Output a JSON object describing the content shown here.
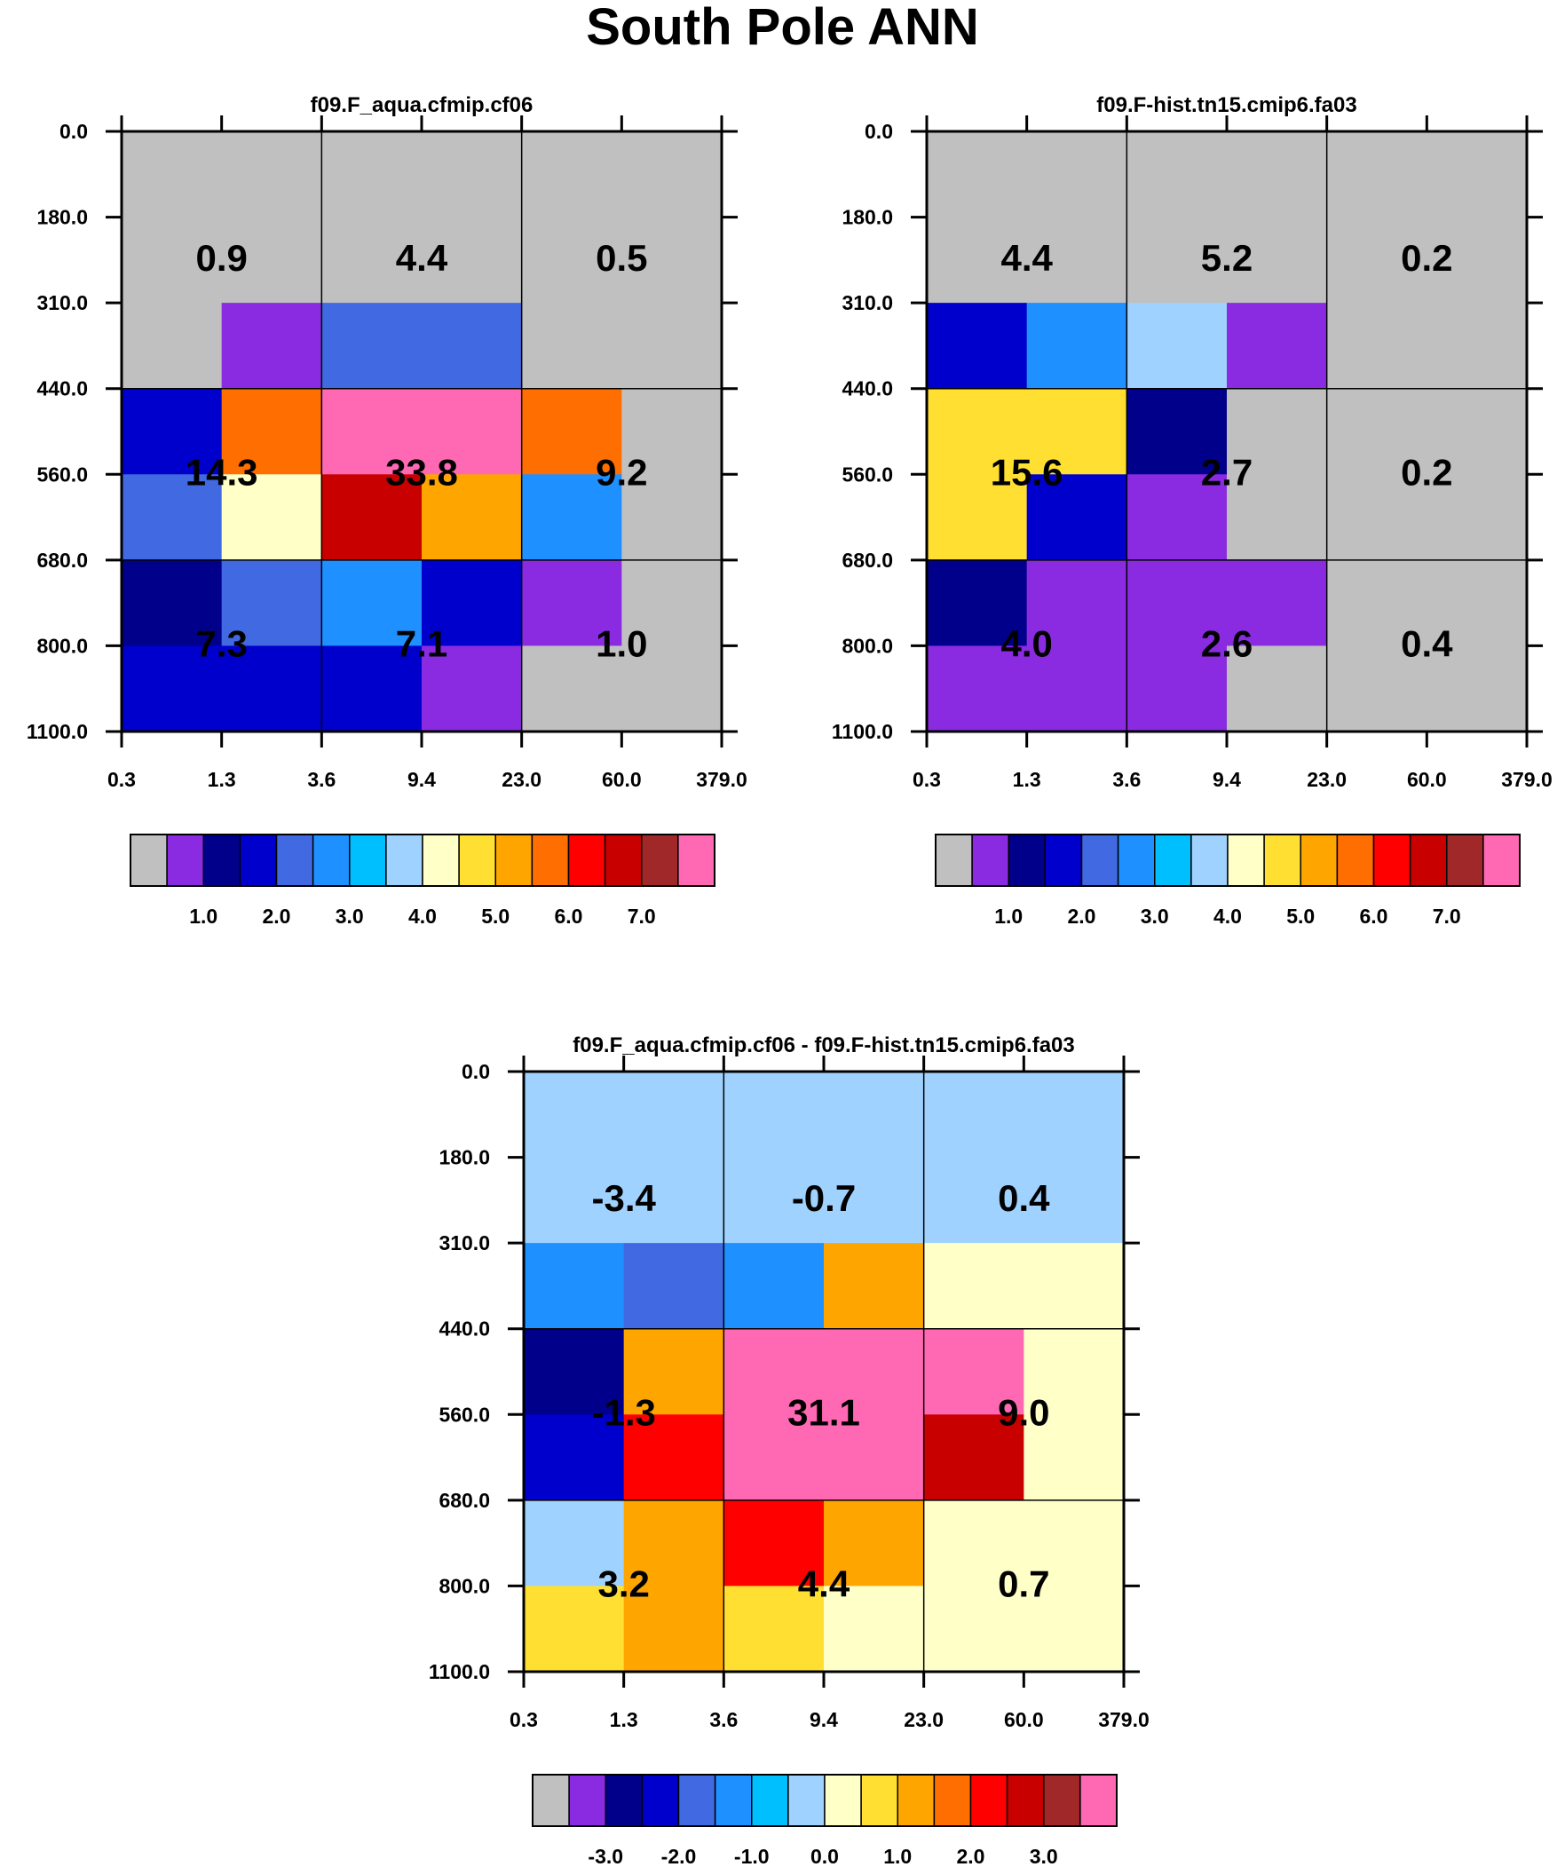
{
  "title": "South Pole ANN",
  "palette": [
    "#c0c0c0",
    "#8a2be2",
    "#00008b",
    "#0000cd",
    "#4169e1",
    "#1e90ff",
    "#00bfff",
    "#a0d2ff",
    "#ffffc8",
    "#ffe032",
    "#ffa500",
    "#ff6e00",
    "#ff0000",
    "#c80000",
    "#a02828",
    "#ff69b4"
  ],
  "chart_data": [
    {
      "type": "heatmap",
      "title": "f09.F_aqua.cfmip.cf06",
      "xticks": [
        "0.3",
        "1.3",
        "3.6",
        "9.4",
        "23.0",
        "60.0",
        "379.0"
      ],
      "yticks": [
        "0.0",
        "180.0",
        "310.0",
        "440.0",
        "560.0",
        "680.0",
        "800.0",
        "1100.0"
      ],
      "cells": [
        [
          0,
          0,
          0,
          0,
          0,
          0
        ],
        [
          0,
          1,
          4,
          4,
          0,
          0
        ],
        [
          3,
          11,
          15,
          15,
          11,
          0
        ],
        [
          4,
          8,
          13,
          10,
          5,
          0
        ],
        [
          2,
          4,
          5,
          3,
          1,
          0
        ],
        [
          3,
          3,
          3,
          1,
          0,
          0
        ]
      ],
      "values": [
        [
          "0.9",
          "4.4",
          "0.5"
        ],
        [
          "14.3",
          "33.8",
          "9.2"
        ],
        [
          "7.3",
          "7.1",
          "1.0"
        ]
      ],
      "colorbar": {
        "labels": [
          "1.0",
          "2.0",
          "3.0",
          "4.0",
          "5.0",
          "6.0",
          "7.0"
        ]
      }
    },
    {
      "type": "heatmap",
      "title": "f09.F-hist.tn15.cmip6.fa03",
      "xticks": [
        "0.3",
        "1.3",
        "3.6",
        "9.4",
        "23.0",
        "60.0",
        "379.0"
      ],
      "yticks": [
        "0.0",
        "180.0",
        "310.0",
        "440.0",
        "560.0",
        "680.0",
        "800.0",
        "1100.0"
      ],
      "cells": [
        [
          0,
          0,
          0,
          0,
          0,
          0
        ],
        [
          3,
          5,
          7,
          1,
          0,
          0
        ],
        [
          9,
          9,
          2,
          0,
          0,
          0
        ],
        [
          9,
          3,
          1,
          0,
          0,
          0
        ],
        [
          2,
          1,
          1,
          1,
          0,
          0
        ],
        [
          1,
          1,
          1,
          0,
          0,
          0
        ]
      ],
      "values": [
        [
          "4.4",
          "5.2",
          "0.2"
        ],
        [
          "15.6",
          "2.7",
          "0.2"
        ],
        [
          "4.0",
          "2.6",
          "0.4"
        ]
      ],
      "colorbar": {
        "labels": [
          "1.0",
          "2.0",
          "3.0",
          "4.0",
          "5.0",
          "6.0",
          "7.0"
        ]
      }
    },
    {
      "type": "heatmap",
      "title": "f09.F_aqua.cfmip.cf06 - f09.F-hist.tn15.cmip6.fa03",
      "xticks": [
        "0.3",
        "1.3",
        "3.6",
        "9.4",
        "23.0",
        "60.0",
        "379.0"
      ],
      "yticks": [
        "0.0",
        "180.0",
        "310.0",
        "440.0",
        "560.0",
        "680.0",
        "800.0",
        "1100.0"
      ],
      "cells": [
        [
          7,
          7,
          7,
          7,
          7,
          7
        ],
        [
          5,
          4,
          5,
          10,
          8,
          8
        ],
        [
          2,
          10,
          15,
          15,
          15,
          8
        ],
        [
          3,
          12,
          15,
          15,
          13,
          8
        ],
        [
          7,
          10,
          12,
          10,
          8,
          8
        ],
        [
          9,
          10,
          9,
          8,
          8,
          8
        ]
      ],
      "values": [
        [
          "-3.4",
          "-0.7",
          "0.4"
        ],
        [
          "-1.3",
          "31.1",
          "9.0"
        ],
        [
          "3.2",
          "4.4",
          "0.7"
        ]
      ],
      "colorbar": {
        "labels": [
          "-3.0",
          "-2.0",
          "-1.0",
          "0.0",
          "1.0",
          "2.0",
          "3.0"
        ]
      }
    }
  ]
}
